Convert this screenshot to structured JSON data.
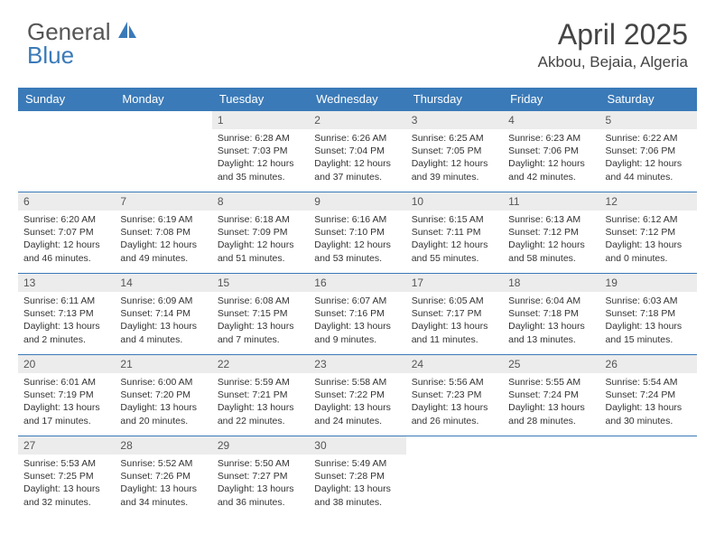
{
  "logo": {
    "general": "General",
    "blue": "Blue"
  },
  "title": "April 2025",
  "location": "Akbou, Bejaia, Algeria",
  "colors": {
    "header_bg": "#3a7ab8",
    "header_text": "#ffffff",
    "daynum_bg": "#ececec",
    "border": "#3a7ab8"
  },
  "weekdays": [
    "Sunday",
    "Monday",
    "Tuesday",
    "Wednesday",
    "Thursday",
    "Friday",
    "Saturday"
  ],
  "weeks": [
    [
      null,
      null,
      {
        "n": "1",
        "sr": "Sunrise: 6:28 AM",
        "ss": "Sunset: 7:03 PM",
        "dl": "Daylight: 12 hours and 35 minutes."
      },
      {
        "n": "2",
        "sr": "Sunrise: 6:26 AM",
        "ss": "Sunset: 7:04 PM",
        "dl": "Daylight: 12 hours and 37 minutes."
      },
      {
        "n": "3",
        "sr": "Sunrise: 6:25 AM",
        "ss": "Sunset: 7:05 PM",
        "dl": "Daylight: 12 hours and 39 minutes."
      },
      {
        "n": "4",
        "sr": "Sunrise: 6:23 AM",
        "ss": "Sunset: 7:06 PM",
        "dl": "Daylight: 12 hours and 42 minutes."
      },
      {
        "n": "5",
        "sr": "Sunrise: 6:22 AM",
        "ss": "Sunset: 7:06 PM",
        "dl": "Daylight: 12 hours and 44 minutes."
      }
    ],
    [
      {
        "n": "6",
        "sr": "Sunrise: 6:20 AM",
        "ss": "Sunset: 7:07 PM",
        "dl": "Daylight: 12 hours and 46 minutes."
      },
      {
        "n": "7",
        "sr": "Sunrise: 6:19 AM",
        "ss": "Sunset: 7:08 PM",
        "dl": "Daylight: 12 hours and 49 minutes."
      },
      {
        "n": "8",
        "sr": "Sunrise: 6:18 AM",
        "ss": "Sunset: 7:09 PM",
        "dl": "Daylight: 12 hours and 51 minutes."
      },
      {
        "n": "9",
        "sr": "Sunrise: 6:16 AM",
        "ss": "Sunset: 7:10 PM",
        "dl": "Daylight: 12 hours and 53 minutes."
      },
      {
        "n": "10",
        "sr": "Sunrise: 6:15 AM",
        "ss": "Sunset: 7:11 PM",
        "dl": "Daylight: 12 hours and 55 minutes."
      },
      {
        "n": "11",
        "sr": "Sunrise: 6:13 AM",
        "ss": "Sunset: 7:12 PM",
        "dl": "Daylight: 12 hours and 58 minutes."
      },
      {
        "n": "12",
        "sr": "Sunrise: 6:12 AM",
        "ss": "Sunset: 7:12 PM",
        "dl": "Daylight: 13 hours and 0 minutes."
      }
    ],
    [
      {
        "n": "13",
        "sr": "Sunrise: 6:11 AM",
        "ss": "Sunset: 7:13 PM",
        "dl": "Daylight: 13 hours and 2 minutes."
      },
      {
        "n": "14",
        "sr": "Sunrise: 6:09 AM",
        "ss": "Sunset: 7:14 PM",
        "dl": "Daylight: 13 hours and 4 minutes."
      },
      {
        "n": "15",
        "sr": "Sunrise: 6:08 AM",
        "ss": "Sunset: 7:15 PM",
        "dl": "Daylight: 13 hours and 7 minutes."
      },
      {
        "n": "16",
        "sr": "Sunrise: 6:07 AM",
        "ss": "Sunset: 7:16 PM",
        "dl": "Daylight: 13 hours and 9 minutes."
      },
      {
        "n": "17",
        "sr": "Sunrise: 6:05 AM",
        "ss": "Sunset: 7:17 PM",
        "dl": "Daylight: 13 hours and 11 minutes."
      },
      {
        "n": "18",
        "sr": "Sunrise: 6:04 AM",
        "ss": "Sunset: 7:18 PM",
        "dl": "Daylight: 13 hours and 13 minutes."
      },
      {
        "n": "19",
        "sr": "Sunrise: 6:03 AM",
        "ss": "Sunset: 7:18 PM",
        "dl": "Daylight: 13 hours and 15 minutes."
      }
    ],
    [
      {
        "n": "20",
        "sr": "Sunrise: 6:01 AM",
        "ss": "Sunset: 7:19 PM",
        "dl": "Daylight: 13 hours and 17 minutes."
      },
      {
        "n": "21",
        "sr": "Sunrise: 6:00 AM",
        "ss": "Sunset: 7:20 PM",
        "dl": "Daylight: 13 hours and 20 minutes."
      },
      {
        "n": "22",
        "sr": "Sunrise: 5:59 AM",
        "ss": "Sunset: 7:21 PM",
        "dl": "Daylight: 13 hours and 22 minutes."
      },
      {
        "n": "23",
        "sr": "Sunrise: 5:58 AM",
        "ss": "Sunset: 7:22 PM",
        "dl": "Daylight: 13 hours and 24 minutes."
      },
      {
        "n": "24",
        "sr": "Sunrise: 5:56 AM",
        "ss": "Sunset: 7:23 PM",
        "dl": "Daylight: 13 hours and 26 minutes."
      },
      {
        "n": "25",
        "sr": "Sunrise: 5:55 AM",
        "ss": "Sunset: 7:24 PM",
        "dl": "Daylight: 13 hours and 28 minutes."
      },
      {
        "n": "26",
        "sr": "Sunrise: 5:54 AM",
        "ss": "Sunset: 7:24 PM",
        "dl": "Daylight: 13 hours and 30 minutes."
      }
    ],
    [
      {
        "n": "27",
        "sr": "Sunrise: 5:53 AM",
        "ss": "Sunset: 7:25 PM",
        "dl": "Daylight: 13 hours and 32 minutes."
      },
      {
        "n": "28",
        "sr": "Sunrise: 5:52 AM",
        "ss": "Sunset: 7:26 PM",
        "dl": "Daylight: 13 hours and 34 minutes."
      },
      {
        "n": "29",
        "sr": "Sunrise: 5:50 AM",
        "ss": "Sunset: 7:27 PM",
        "dl": "Daylight: 13 hours and 36 minutes."
      },
      {
        "n": "30",
        "sr": "Sunrise: 5:49 AM",
        "ss": "Sunset: 7:28 PM",
        "dl": "Daylight: 13 hours and 38 minutes."
      },
      null,
      null,
      null
    ]
  ]
}
